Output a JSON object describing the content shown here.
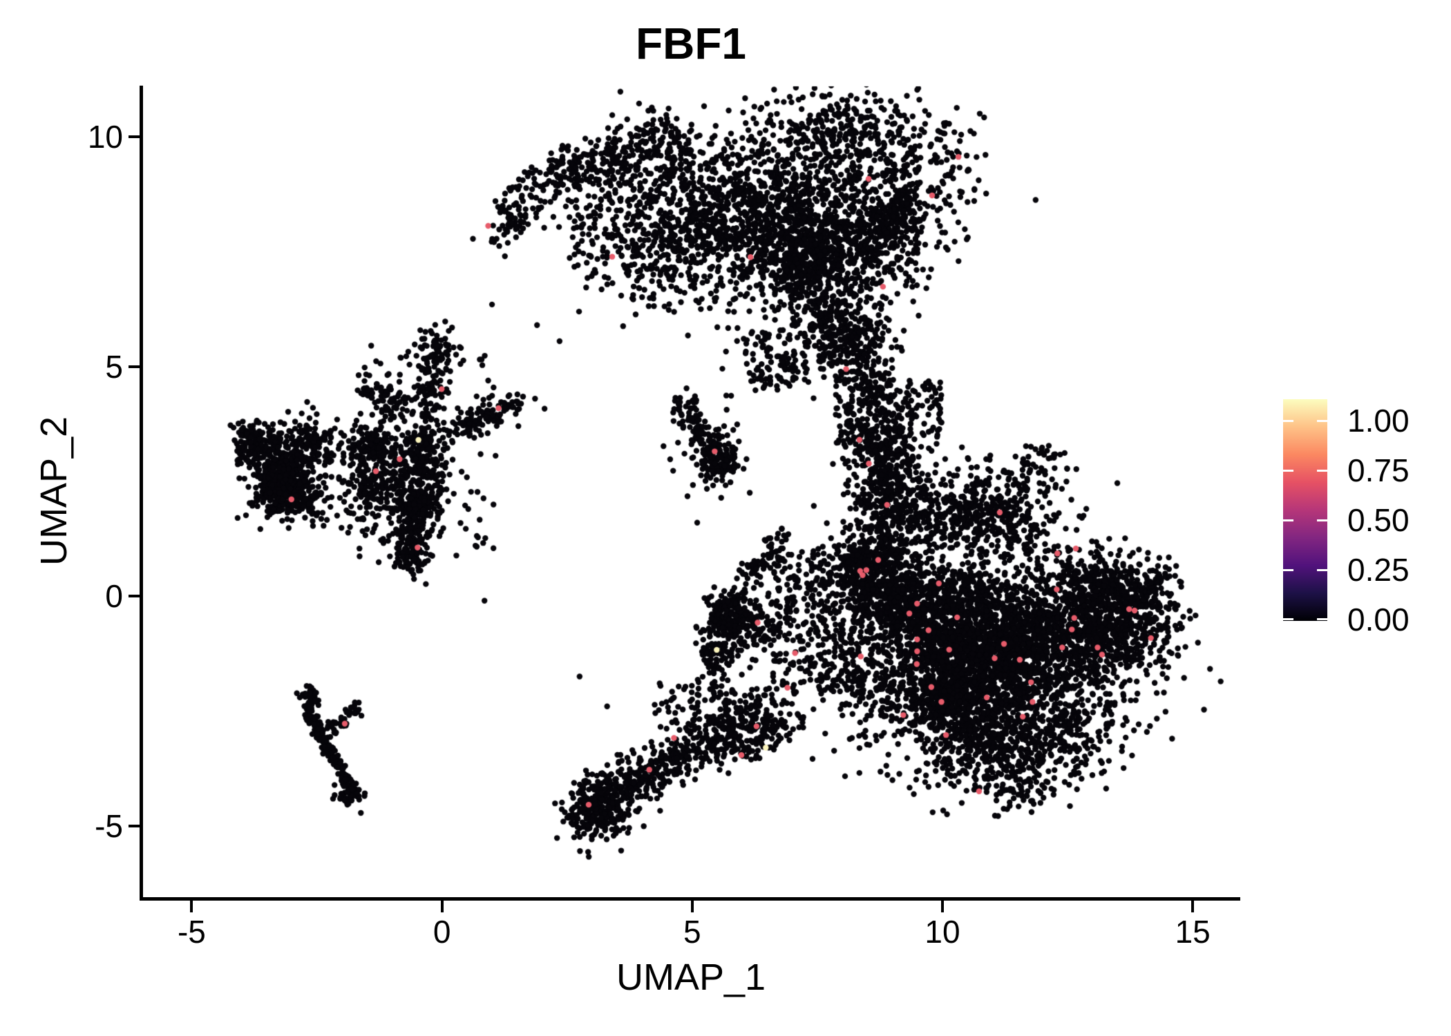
{
  "chart_data": {
    "type": "scatter",
    "title": "FBF1",
    "xlabel": "UMAP_1",
    "ylabel": "UMAP_2",
    "xlim": [
      -6.0,
      15.95
    ],
    "ylim": [
      -6.6,
      11.1
    ],
    "x_ticks": [
      -5,
      0,
      5,
      10,
      15
    ],
    "y_ticks": [
      -5,
      0,
      5,
      10
    ],
    "grid": false,
    "legend_position": "right",
    "color_scale": {
      "colormap": "magma",
      "tick_labels": [
        "1.00",
        "0.75",
        "0.50",
        "0.25",
        "0.00"
      ],
      "tick_values": [
        1.0,
        0.75,
        0.5,
        0.25,
        0.0
      ],
      "vmin": -0.007,
      "vmax": 1.108,
      "gradient_stops": [
        "#000004",
        "#1D1147",
        "#51127C",
        "#822681",
        "#B63679",
        "#E65164",
        "#FB8861",
        "#FEC287",
        "#FCFDBF"
      ]
    },
    "point_colors": {
      "zero_expression": "#06050A",
      "mid_expression": "#E75C6B",
      "high_expression": "#FCF5BE"
    },
    "point_radius_px": 4.2,
    "seed": 1337,
    "n_points_approx": 15000,
    "clusters": [
      {
        "name": "arc-arm",
        "kind": "path",
        "pts": [
          [
            1.15,
            7.8
          ],
          [
            1.5,
            8.5
          ],
          [
            2.2,
            9.1
          ],
          [
            3.1,
            9.5
          ],
          [
            4.1,
            9.8
          ],
          [
            4.9,
            10.0
          ]
        ],
        "jitter": 0.26,
        "n": 330,
        "expr": 1
      },
      {
        "name": "arc-hollow-scatter",
        "kind": "box",
        "x": [
          2.5,
          4.6
        ],
        "y": [
          6.9,
          9.3
        ],
        "n": 130
      },
      {
        "name": "arc-main",
        "kind": "gauss",
        "c": [
          6.25,
          8.5
        ],
        "s": [
          1.4,
          1.0
        ],
        "n": 2200,
        "expr": 5,
        "lumpy": true
      },
      {
        "name": "arc-main-lower",
        "kind": "gauss",
        "c": [
          7.5,
          7.15
        ],
        "s": [
          0.85,
          0.75
        ],
        "n": 650,
        "lumpy": true
      },
      {
        "name": "arc-right-bulge",
        "kind": "gauss",
        "c": [
          8.75,
          7.8
        ],
        "s": [
          0.5,
          0.75
        ],
        "n": 260,
        "expr": 1
      },
      {
        "name": "arc-right-nub",
        "kind": "gauss",
        "c": [
          9.15,
          8.35
        ],
        "s": [
          0.22,
          0.33
        ],
        "n": 60
      },
      {
        "name": "arc-bottom-strand",
        "kind": "path",
        "pts": [
          [
            7.3,
            6.3
          ],
          [
            7.85,
            5.7
          ],
          [
            8.35,
            5.1
          ],
          [
            8.7,
            4.55
          ]
        ],
        "jitter": 0.28,
        "n": 250,
        "expr": 1
      },
      {
        "name": "connector",
        "kind": "path",
        "pts": [
          [
            8.75,
            4.35
          ],
          [
            8.85,
            3.6
          ],
          [
            8.8,
            2.9
          ],
          [
            8.95,
            2.2
          ],
          [
            9.1,
            1.55
          ]
        ],
        "jitter": 0.3,
        "n": 300,
        "expr": 1
      },
      {
        "name": "connector-west-scatter",
        "kind": "box",
        "x": [
          7.85,
          8.55
        ],
        "y": [
          3.3,
          4.9
        ],
        "n": 100
      },
      {
        "name": "connector-east-scatter",
        "kind": "box",
        "x": [
          9.3,
          10.0
        ],
        "y": [
          3.5,
          4.7
        ],
        "n": 60
      },
      {
        "name": "blob-upper-cloud",
        "kind": "gauss",
        "c": [
          9.75,
          2.35
        ],
        "s": [
          0.9,
          0.7
        ],
        "n": 520,
        "expr": 2,
        "lumpy": true
      },
      {
        "name": "blob-upper-right",
        "kind": "gauss",
        "c": [
          11.0,
          2.0
        ],
        "s": [
          0.7,
          0.5
        ],
        "n": 230,
        "expr": 1
      },
      {
        "name": "blob-upper-sparse",
        "kind": "box",
        "x": [
          11.6,
          12.5
        ],
        "y": [
          2.3,
          3.3
        ],
        "n": 45
      },
      {
        "name": "blob-top",
        "kind": "gauss",
        "c": [
          9.7,
          0.5
        ],
        "s": [
          0.85,
          0.72
        ],
        "n": 680,
        "expr": 3,
        "lumpy": true
      },
      {
        "name": "blob-core",
        "kind": "gauss",
        "c": [
          10.9,
          -1.5
        ],
        "s": [
          1.5,
          1.3
        ],
        "n": 3300,
        "expr": 25,
        "lumpy": true
      },
      {
        "name": "blob-right-lobe",
        "kind": "gauss",
        "c": [
          12.85,
          -0.5
        ],
        "s": [
          0.8,
          0.8
        ],
        "n": 780,
        "expr": 5,
        "lumpy": true
      },
      {
        "name": "blob-right-tip",
        "kind": "gauss",
        "c": [
          13.9,
          0.0
        ],
        "s": [
          0.38,
          0.42
        ],
        "n": 120,
        "expr": 1
      },
      {
        "name": "blob-tip-spike",
        "kind": "path",
        "pts": [
          [
            14.1,
            0.3
          ],
          [
            14.45,
            0.4
          ]
        ],
        "jitter": 0.09,
        "n": 22
      },
      {
        "name": "blob-bottom-rim",
        "kind": "gauss",
        "c": [
          10.5,
          -3.3
        ],
        "s": [
          1.1,
          0.55
        ],
        "n": 600,
        "expr": 3,
        "lumpy": true
      },
      {
        "name": "transition-zone",
        "kind": "box",
        "x": [
          6.6,
          8.45
        ],
        "y": [
          -2.1,
          1.0
        ],
        "n": 300,
        "expr": 2
      },
      {
        "name": "center-blob",
        "kind": "gauss",
        "c": [
          5.7,
          -0.5
        ],
        "s": [
          0.36,
          0.62
        ],
        "n": 380,
        "expr": 1,
        "lumpy": true
      },
      {
        "name": "center-blob-arm",
        "kind": "path",
        "pts": [
          [
            6.0,
            0.35
          ],
          [
            6.5,
            0.9
          ],
          [
            6.95,
            1.3
          ]
        ],
        "jitter": 0.16,
        "n": 65
      },
      {
        "name": "bottom-cluster-core",
        "kind": "gauss",
        "c": [
          3.08,
          -4.68
        ],
        "s": [
          0.32,
          0.34
        ],
        "n": 260,
        "expr": 1
      },
      {
        "name": "bottom-cluster-upper",
        "kind": "gauss",
        "c": [
          3.5,
          -4.2
        ],
        "s": [
          0.36,
          0.3
        ],
        "n": 130
      },
      {
        "name": "bottom-tail",
        "kind": "path",
        "pts": [
          [
            3.85,
            -3.95
          ],
          [
            4.55,
            -3.6
          ],
          [
            5.3,
            -3.25
          ],
          [
            6.1,
            -2.95
          ],
          [
            6.85,
            -2.68
          ]
        ],
        "jitter": 0.27,
        "n": 410,
        "expr": 4
      },
      {
        "name": "bottom-tail-upper-scatter",
        "kind": "box",
        "x": [
          4.2,
          6.6
        ],
        "y": [
          -2.95,
          -1.95
        ],
        "n": 120
      },
      {
        "name": "mid-small-core",
        "kind": "gauss",
        "c": [
          5.52,
          2.95
        ],
        "s": [
          0.22,
          0.3
        ],
        "n": 135,
        "expr": 1
      },
      {
        "name": "mid-small-arm",
        "kind": "path",
        "pts": [
          [
            5.32,
            3.35
          ],
          [
            5.0,
            3.8
          ],
          [
            4.72,
            4.3
          ]
        ],
        "jitter": 0.13,
        "n": 70
      },
      {
        "name": "mid-small-scatter",
        "kind": "box",
        "x": [
          4.4,
          5.95
        ],
        "y": [
          2.45,
          4.5
        ],
        "n": 25
      },
      {
        "name": "spider-main",
        "kind": "gauss",
        "c": [
          -0.35,
          3.1
        ],
        "s": [
          0.55,
          0.58
        ],
        "n": 500,
        "expr": 2,
        "lumpy": true
      },
      {
        "name": "spider-arm-up",
        "kind": "path",
        "pts": [
          [
            -0.3,
            3.95
          ],
          [
            -0.25,
            4.6
          ],
          [
            -0.15,
            5.2
          ],
          [
            -0.1,
            5.8
          ]
        ],
        "jitter": 0.18,
        "n": 125,
        "expr": 1
      },
      {
        "name": "spider-arm-upleft",
        "kind": "path",
        "pts": [
          [
            -0.75,
            4.1
          ],
          [
            -1.2,
            4.35
          ],
          [
            -1.62,
            4.5
          ]
        ],
        "jitter": 0.13,
        "n": 70
      },
      {
        "name": "spider-arm-left",
        "kind": "path",
        "pts": [
          [
            -1.6,
            3.5
          ],
          [
            -1.25,
            3.3
          ],
          [
            -0.95,
            3.2
          ]
        ],
        "jitter": 0.14,
        "n": 60
      },
      {
        "name": "spider-arm-right",
        "kind": "path",
        "pts": [
          [
            0.3,
            3.6
          ],
          [
            0.9,
            3.9
          ],
          [
            1.5,
            4.25
          ]
        ],
        "jitter": 0.16,
        "n": 95,
        "expr": 1
      },
      {
        "name": "spider-arm-down",
        "kind": "path",
        "pts": [
          [
            -0.3,
            2.4
          ],
          [
            -0.45,
            1.9
          ],
          [
            -0.55,
            1.45
          ]
        ],
        "jitter": 0.15,
        "n": 140
      },
      {
        "name": "spider-knot",
        "kind": "gauss",
        "c": [
          -0.6,
          0.98
        ],
        "s": [
          0.2,
          0.26
        ],
        "n": 115,
        "expr": 1
      },
      {
        "name": "spider-scatter",
        "kind": "box",
        "x": [
          -1.7,
          1.1
        ],
        "y": [
          0.85,
          5.5
        ],
        "n": 160
      },
      {
        "name": "left-bridge-scatter",
        "kind": "box",
        "x": [
          -2.1,
          -1.3
        ],
        "y": [
          1.3,
          2.6
        ],
        "n": 40
      },
      {
        "name": "left-knot",
        "kind": "gauss",
        "c": [
          -3.87,
          3.42
        ],
        "s": [
          0.17,
          0.21
        ],
        "n": 65
      },
      {
        "name": "left-top",
        "kind": "gauss",
        "c": [
          -3.35,
          3.1
        ],
        "s": [
          0.3,
          0.26
        ],
        "n": 140
      },
      {
        "name": "left-main",
        "kind": "gauss",
        "c": [
          -2.95,
          2.5
        ],
        "s": [
          0.42,
          0.5
        ],
        "n": 580,
        "expr": 1,
        "lumpy": true
      },
      {
        "name": "left-scatter",
        "kind": "box",
        "x": [
          -4.1,
          -2.2
        ],
        "y": [
          1.45,
          3.8
        ],
        "n": 110
      },
      {
        "name": "streak-main",
        "kind": "path",
        "pts": [
          [
            -2.67,
            -2.0
          ],
          [
            -2.6,
            -2.6
          ],
          [
            -2.38,
            -3.1
          ],
          [
            -2.1,
            -3.6
          ],
          [
            -1.86,
            -4.05
          ],
          [
            -1.8,
            -4.33
          ]
        ],
        "jitter": 0.07,
        "n": 210
      },
      {
        "name": "streak-arm",
        "kind": "path",
        "pts": [
          [
            -2.35,
            -3.05
          ],
          [
            -2.0,
            -2.7
          ],
          [
            -1.7,
            -2.45
          ]
        ],
        "jitter": 0.09,
        "n": 42,
        "expr": 1
      },
      {
        "name": "streak-knot",
        "kind": "gauss",
        "c": [
          -1.85,
          -4.3
        ],
        "s": [
          0.13,
          0.12
        ],
        "n": 38
      }
    ],
    "isolated_points": [
      [
        -1.62,
        -4.72
      ],
      [
        1.0,
        6.35
      ],
      [
        1.9,
        5.9
      ],
      [
        2.35,
        5.55
      ],
      [
        4.35,
        -1.9
      ],
      [
        3.3,
        -2.4
      ],
      [
        2.75,
        -1.75
      ],
      [
        6.15,
        2.25
      ],
      [
        2.05,
        4.08
      ],
      [
        1.86,
        4.3
      ],
      [
        0.85,
        -0.1
      ],
      [
        5.1,
        1.6
      ],
      [
        7.0,
        5.9
      ],
      [
        6.6,
        6.3
      ],
      [
        14.2,
        -0.85
      ]
    ],
    "high_expression_points": [
      [
        -0.47,
        3.4
      ],
      [
        5.49,
        -1.17
      ],
      [
        6.47,
        -3.3
      ]
    ]
  }
}
